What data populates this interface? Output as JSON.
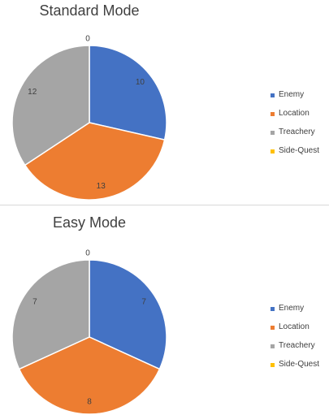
{
  "chart_data": [
    {
      "type": "pie",
      "title": "Standard Mode",
      "categories": [
        "Enemy",
        "Location",
        "Treachery",
        "Side-Quest"
      ],
      "values": [
        10,
        13,
        12,
        0
      ],
      "colors": [
        "#4472c4",
        "#ed7d31",
        "#a5a5a5",
        "#ffc000"
      ],
      "legend": "right"
    },
    {
      "type": "pie",
      "title": "Easy Mode",
      "categories": [
        "Enemy",
        "Location",
        "Treachery",
        "Side-Quest"
      ],
      "values": [
        7,
        8,
        7,
        0
      ],
      "colors": [
        "#4472c4",
        "#ed7d31",
        "#a5a5a5",
        "#ffc000"
      ],
      "legend": "right"
    }
  ]
}
